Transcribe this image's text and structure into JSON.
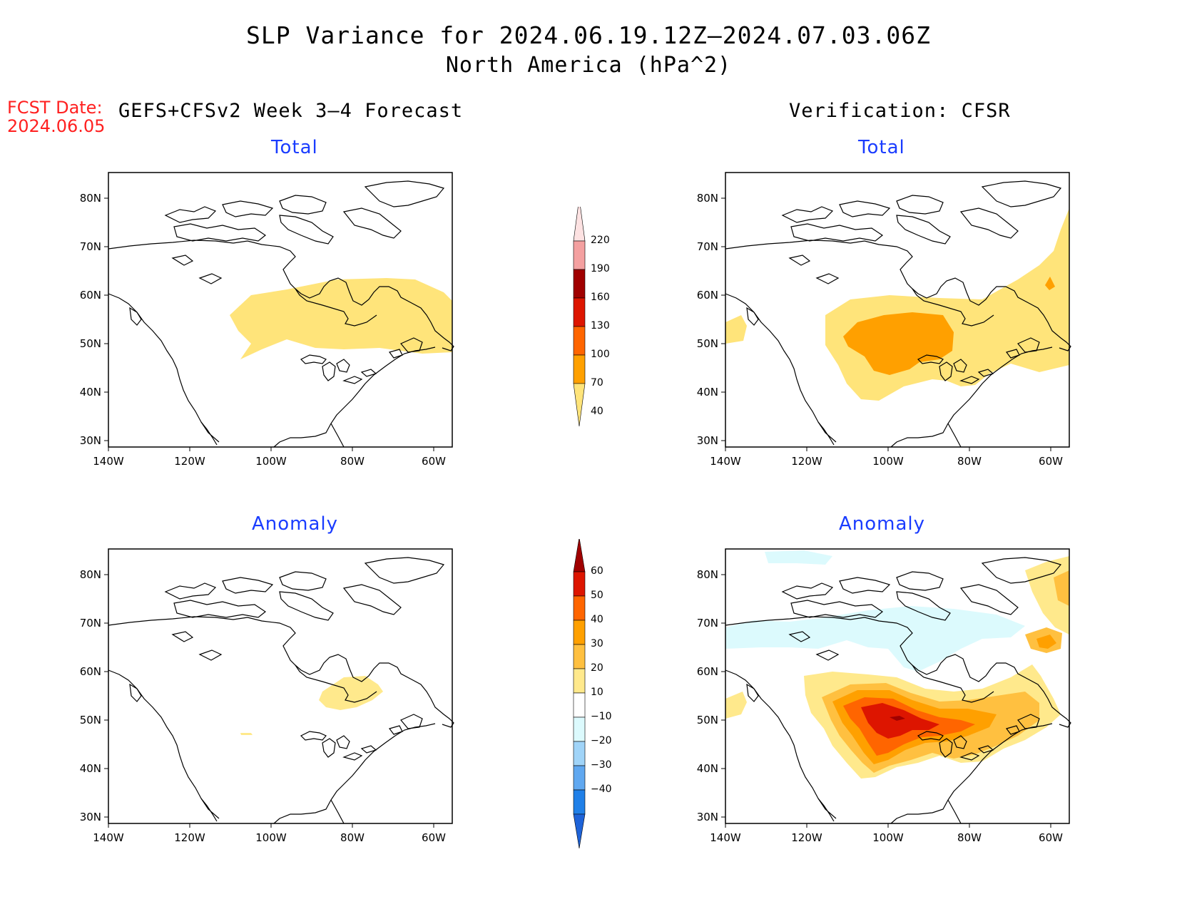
{
  "title": "SLP Variance for 2024.06.19.12Z–2024.07.03.06Z",
  "subtitle": "North America (hPa^2)",
  "fcst_date_label": "FCST Date:",
  "fcst_date": "2024.06.05",
  "left_column": "GEFS+CFSv2 Week 3–4 Forecast",
  "right_column": "Verification: CFSR",
  "panels": {
    "fc_total": "Total",
    "obs_total": "Total",
    "fc_anom": "Anomaly",
    "obs_anom": "Anomaly"
  },
  "lat_labels": [
    "80N",
    "70N",
    "60N",
    "50N",
    "40N",
    "30N"
  ],
  "lon_labels": [
    "140W",
    "120W",
    "100W",
    "80W",
    "60W"
  ],
  "total_colorbar": {
    "labels": [
      "220",
      "190",
      "160",
      "130",
      "100",
      "70",
      "40"
    ],
    "colors": [
      "#fde2e2",
      "#f4a0a0",
      "#a00000",
      "#dd1500",
      "#ff6500",
      "#ffa000",
      "#ffe47a"
    ]
  },
  "anomaly_colorbar": {
    "labels": [
      "60",
      "50",
      "40",
      "30",
      "20",
      "10",
      "−10",
      "−20",
      "−30",
      "−40"
    ],
    "colors": [
      "#a00000",
      "#dd1500",
      "#ff6500",
      "#ffa000",
      "#ffc040",
      "#ffe98c",
      "#ffffff",
      "#dcfafd",
      "#a0d4f8",
      "#60a8f0",
      "#2080e8",
      "#1e63d8"
    ]
  }
}
